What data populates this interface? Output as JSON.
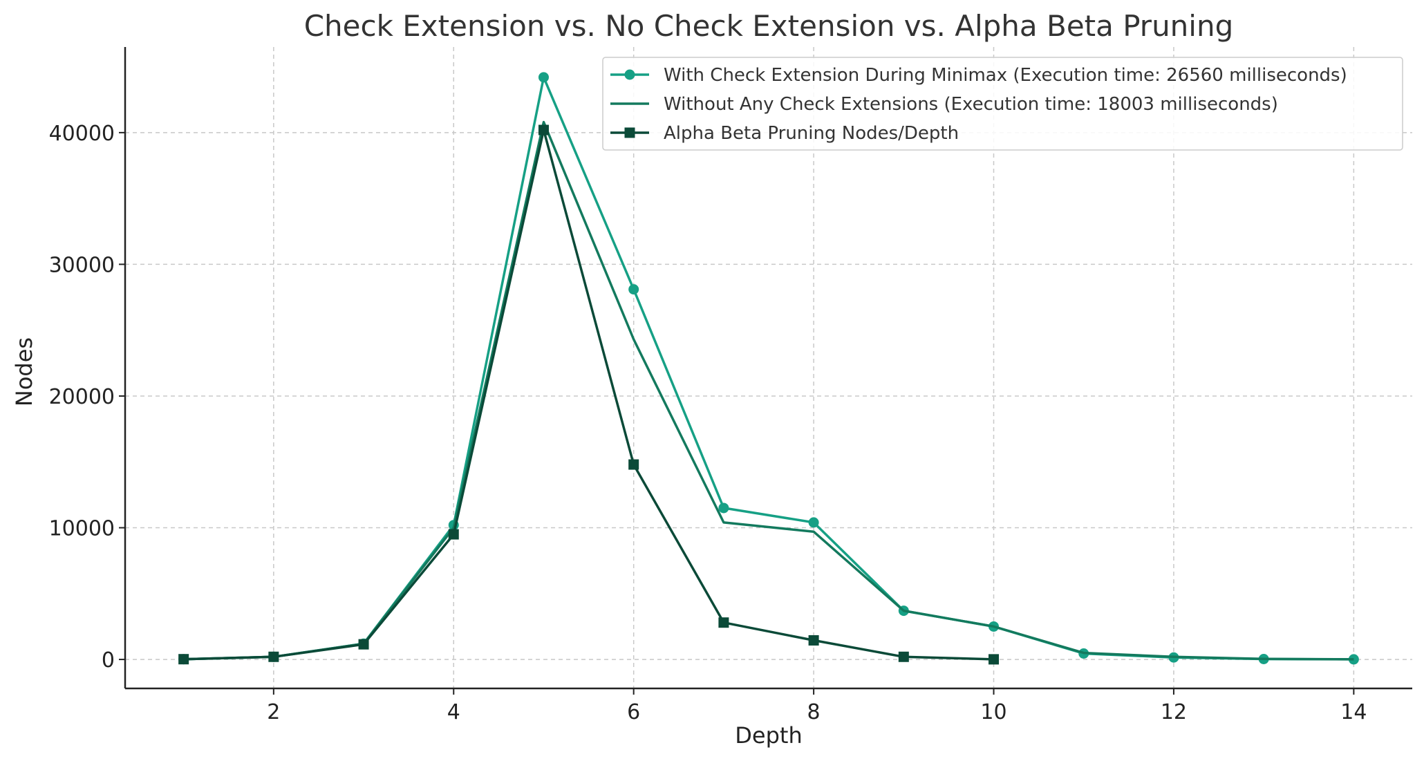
{
  "chart_data": {
    "type": "line",
    "title": "Check Extension vs. No Check Extension vs. Alpha Beta Pruning",
    "xlabel": "Depth",
    "ylabel": "Nodes",
    "xlim": [
      0.35,
      14.65
    ],
    "ylim": [
      -2200,
      46500
    ],
    "xticks": [
      2,
      4,
      6,
      8,
      10,
      12,
      14
    ],
    "yticks": [
      0,
      10000,
      20000,
      30000,
      40000
    ],
    "grid": true,
    "legend_position": "top-right",
    "series": [
      {
        "name": "With Check Extension During Minimax (Execution time: 26560 milliseconds)",
        "color": "#16a085",
        "marker": "circle",
        "x": [
          1,
          2,
          3,
          4,
          5,
          6,
          7,
          8,
          9,
          10,
          11,
          12,
          13,
          14
        ],
        "y": [
          20,
          200,
          1200,
          10200,
          44200,
          28100,
          11500,
          10400,
          3700,
          2500,
          450,
          150,
          30,
          10
        ]
      },
      {
        "name": "Without Any Check Extensions (Execution time: 18003 milliseconds)",
        "color": "#137a5e",
        "marker": "none",
        "x": [
          1,
          2,
          3,
          4,
          5,
          6,
          7,
          8,
          9,
          10,
          11,
          12,
          13,
          14
        ],
        "y": [
          20,
          200,
          1200,
          10000,
          40800,
          24300,
          10400,
          9700,
          3700,
          2500,
          500,
          200,
          40,
          10
        ]
      },
      {
        "name": "Alpha Beta Pruning Nodes/Depth",
        "color": "#0b4a38",
        "marker": "square",
        "x": [
          1,
          2,
          3,
          4,
          5,
          6,
          7,
          8,
          9,
          10
        ],
        "y": [
          20,
          200,
          1150,
          9500,
          40200,
          14800,
          2800,
          1450,
          200,
          10
        ]
      }
    ]
  }
}
